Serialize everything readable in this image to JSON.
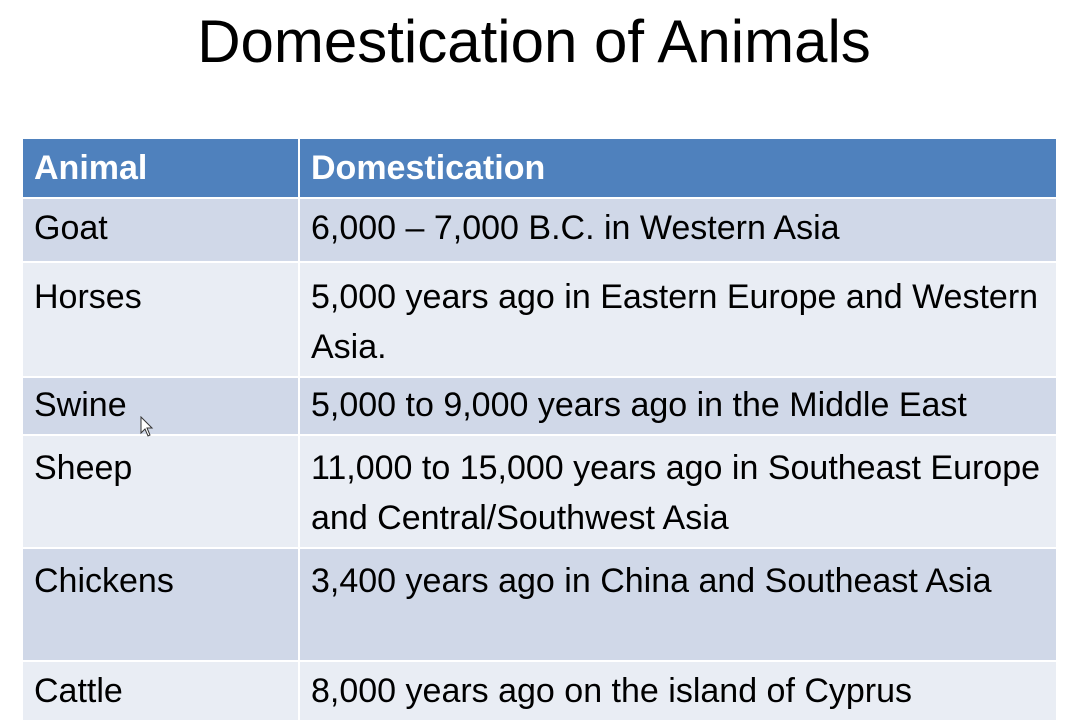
{
  "title": "Domestication of Animals",
  "table": {
    "headers": [
      "Animal",
      "Domestication"
    ],
    "rows": [
      [
        "Goat",
        "6,000 – 7,000 B.C. in Western Asia"
      ],
      [
        "Horses",
        "5,000 years ago in Eastern Europe and Western Asia."
      ],
      [
        "Swine",
        "5,000 to 9,000 years ago in the Middle East"
      ],
      [
        "Sheep",
        "11,000 to 15,000 years ago in Southeast Europe and Central/Southwest Asia"
      ],
      [
        "Chickens",
        "3,400 years ago in China and Southeast Asia"
      ],
      [
        "Cattle",
        "8,000 years ago on the island of Cyprus"
      ]
    ]
  },
  "colors": {
    "header_bg": "#4f81bd",
    "row_odd_bg": "#d0d8e8",
    "row_even_bg": "#e9edf4"
  },
  "icons": {
    "cursor": "mouse-pointer-icon"
  }
}
